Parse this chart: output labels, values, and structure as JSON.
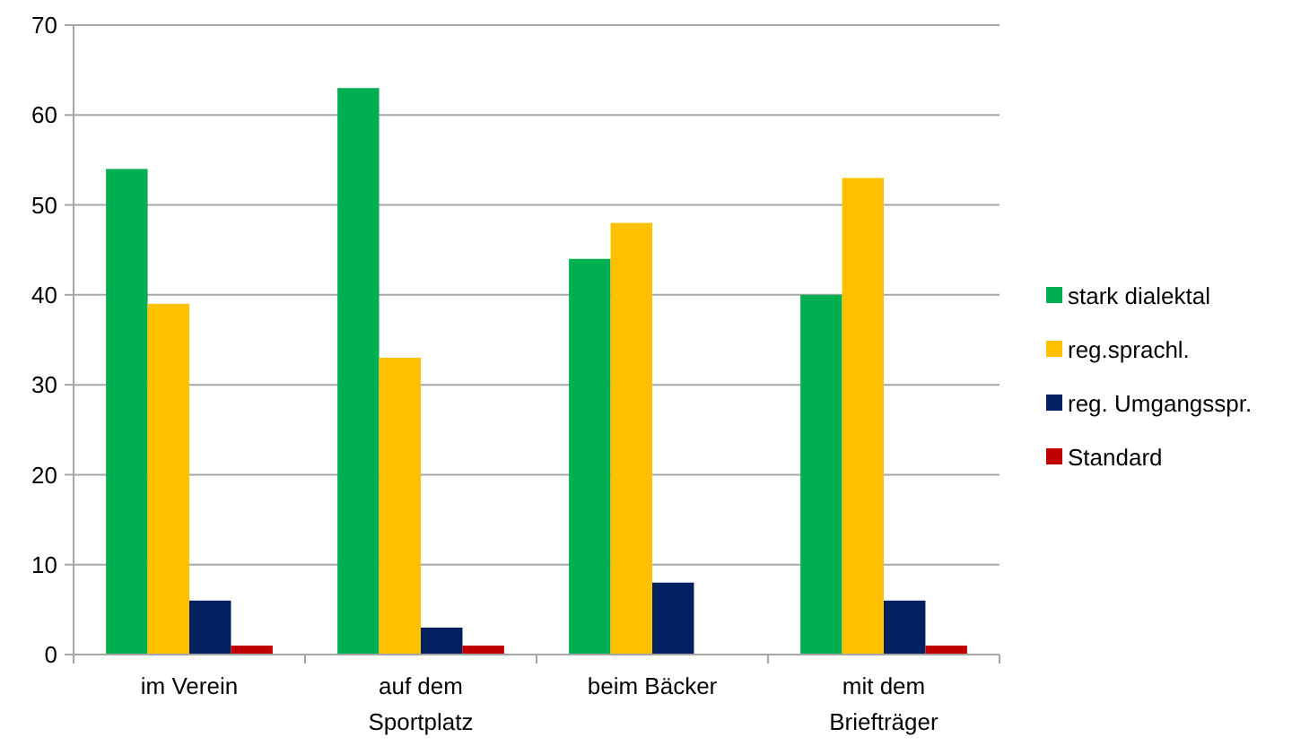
{
  "chart_data": {
    "type": "bar",
    "categories": [
      "im Verein",
      "auf dem Sportplatz",
      "beim Bäcker",
      "mit dem Briefträger"
    ],
    "series": [
      {
        "name": "stark dialektal",
        "color": "#00b050",
        "values": [
          54,
          63,
          44,
          40
        ]
      },
      {
        "name": "reg.sprachl.",
        "color": "#ffc000",
        "values": [
          39,
          33,
          48,
          53
        ]
      },
      {
        "name": "reg. Umgangsspr.",
        "color": "#002060",
        "values": [
          6,
          3,
          8,
          6
        ]
      },
      {
        "name": "Standard",
        "color": "#c00000",
        "values": [
          1,
          1,
          0,
          1
        ]
      }
    ],
    "ylim": [
      0,
      70
    ],
    "yticks": [
      0,
      10,
      20,
      30,
      40,
      50,
      60,
      70
    ],
    "grid": "y",
    "legend": "right"
  }
}
